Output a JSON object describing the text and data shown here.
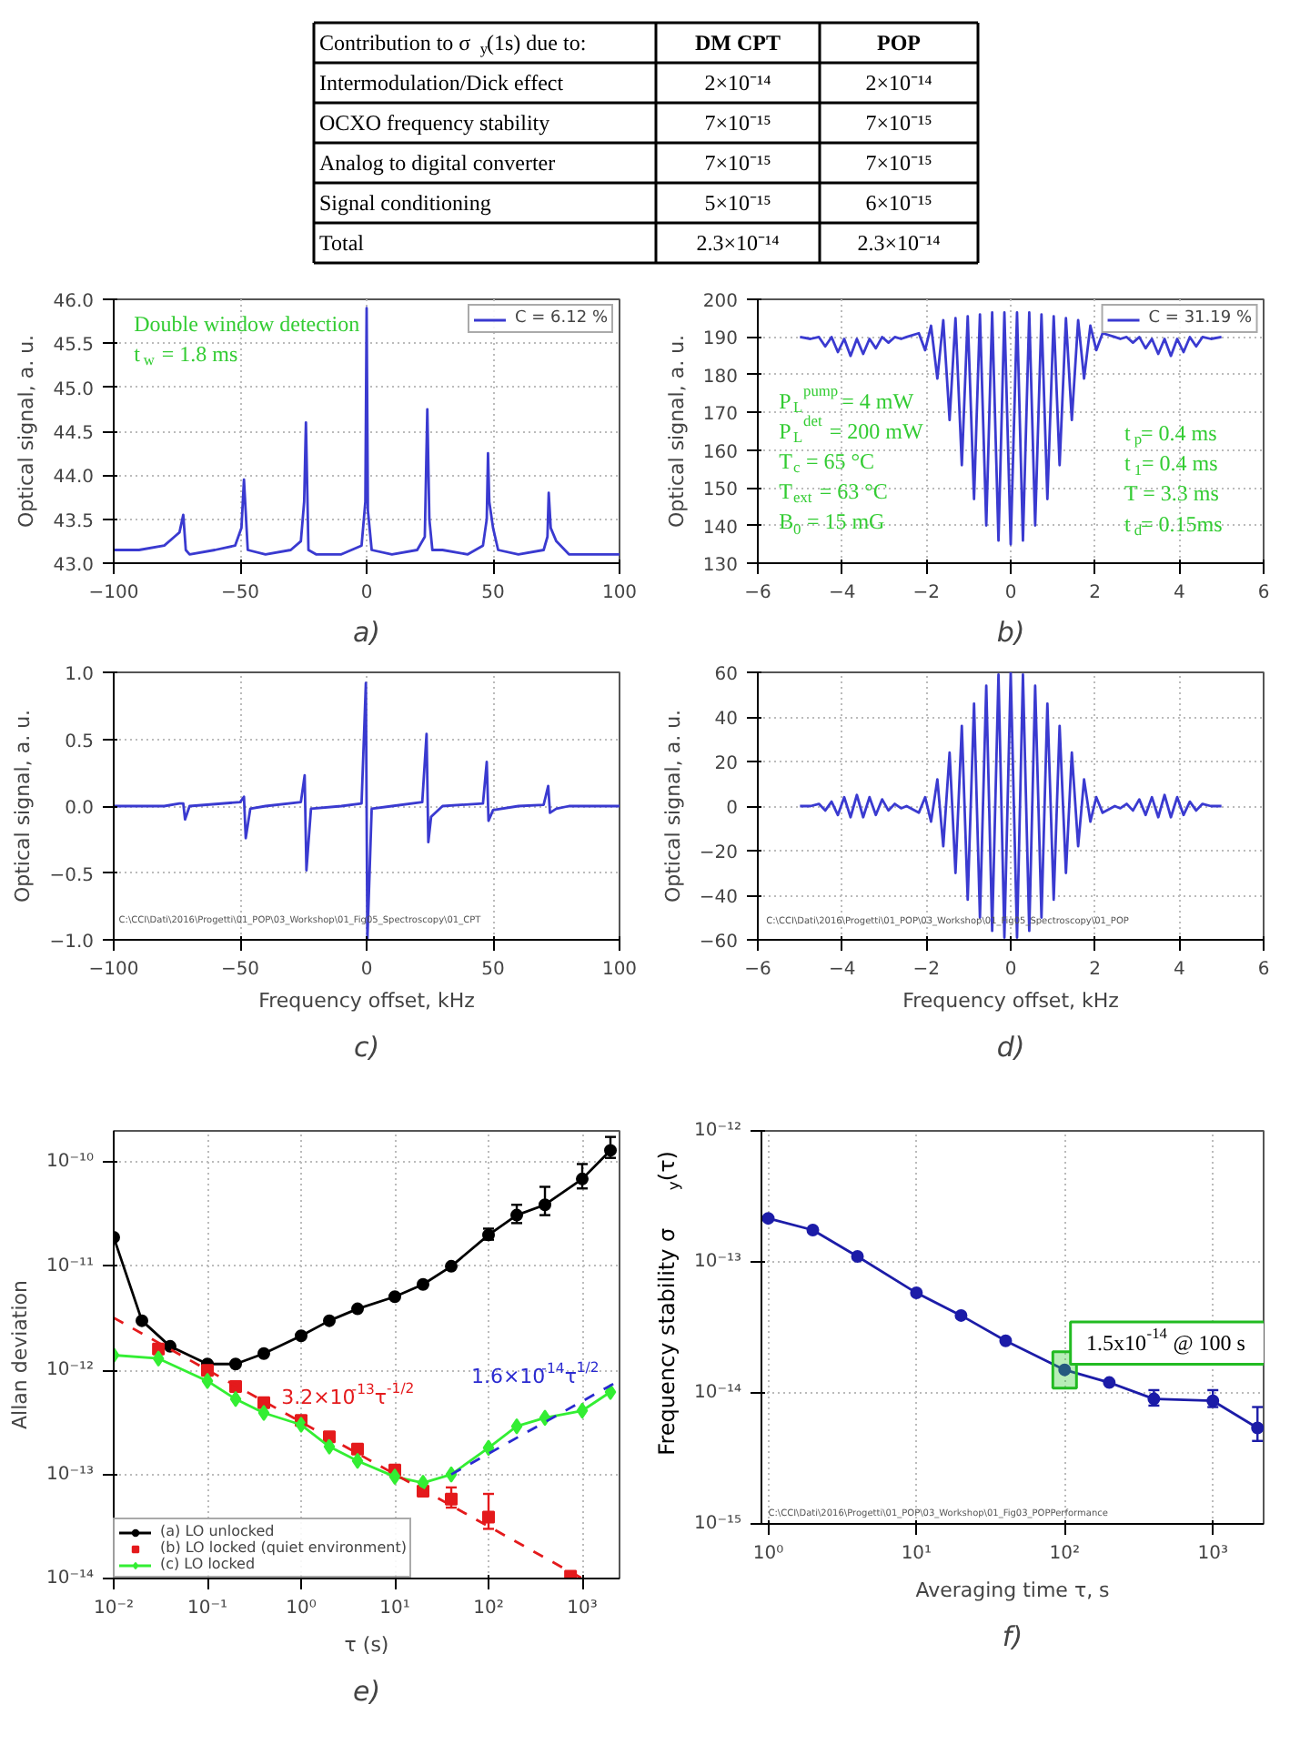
{
  "chart_data": [
    {
      "type": "other",
      "title": "Contribution to σ$_{y}$(1s) due to:",
      "categories": [
        "DM CPT",
        "POP"
      ],
      "y_categories": [
        "Intermodulation/Dick effect",
        "OCXO frequency stability",
        "Analog to digital converter",
        "Signal conditioning",
        "Total"
      ],
      "cell_labels": [
        [
          "2×10⁻¹⁴",
          "2×10⁻¹⁴"
        ],
        [
          "7×10⁻¹⁵",
          "7×10⁻¹⁵"
        ],
        [
          "7×10⁻¹⁵",
          "7×10⁻¹⁵"
        ],
        [
          "5×10⁻¹⁵",
          "6×10⁻¹⁵"
        ],
        [
          "2.3×10⁻¹⁴",
          "2.3×10⁻¹⁴"
        ]
      ]
    },
    {
      "type": "line",
      "title": "a)",
      "ylabel": "Optical signal, a. u.",
      "xlim": [
        -100,
        100
      ],
      "ylim": [
        43,
        46
      ],
      "xticks": [
        {
          "value": -100,
          "label": "−100"
        },
        {
          "value": -50,
          "label": "−50"
        },
        0,
        50,
        100
      ],
      "yticks": [
        {
          "value": 43,
          "label": "43.0"
        },
        {
          "value": 43.5,
          "label": "43.5"
        },
        {
          "value": 44,
          "label": "44.0"
        },
        {
          "value": 44.5,
          "label": "44.5"
        },
        {
          "value": 45,
          "label": "45.0"
        },
        {
          "value": 45.5,
          "label": "45.5"
        },
        {
          "value": 46,
          "label": "46.0"
        }
      ],
      "grid": true,
      "legend": "top right",
      "annotations": [
        "Double window detection",
        "t$_{w}$ = 1.8 ms"
      ],
      "series": [
        {
          "name": "C = 6.12 %",
          "color": "#3a3ad0",
          "x": [
            -100,
            -90,
            -80,
            -76,
            -74,
            -72.5,
            -71.5,
            -70,
            -60,
            -52,
            -49.5,
            -48.5,
            -47,
            -40,
            -30,
            -26,
            -24.7,
            -24,
            -23,
            -20,
            -10,
            -2,
            -0.5,
            0,
            0.5,
            2,
            10,
            20,
            23,
            24,
            24.8,
            26,
            30,
            40,
            46,
            47.5,
            48,
            48.5,
            50,
            52,
            60,
            70,
            71.5,
            72,
            72.8,
            75,
            80,
            90,
            100
          ],
          "values": [
            43.15,
            43.15,
            43.2,
            43.3,
            43.35,
            43.55,
            43.15,
            43.1,
            43.15,
            43.2,
            43.4,
            43.95,
            43.15,
            43.1,
            43.15,
            43.25,
            43.7,
            44.6,
            43.15,
            43.1,
            43.1,
            43.2,
            43.7,
            45.9,
            43.6,
            43.15,
            43.1,
            43.15,
            43.3,
            44.75,
            43.5,
            43.15,
            43.15,
            43.1,
            43.2,
            43.5,
            44.25,
            43.7,
            43.4,
            43.15,
            43.1,
            43.15,
            43.3,
            43.8,
            43.4,
            43.25,
            43.1,
            43.1,
            43.1
          ]
        }
      ]
    },
    {
      "type": "line",
      "title": "b)",
      "ylabel": "Optical signal, a. u.",
      "xlim": [
        -6,
        6
      ],
      "ylim": [
        130,
        200
      ],
      "xticks": [
        {
          "value": -6,
          "label": "−6"
        },
        {
          "value": -4,
          "label": "−4"
        },
        {
          "value": -2,
          "label": "−2"
        },
        0,
        2,
        4,
        6
      ],
      "yticks": [
        130,
        140,
        150,
        160,
        170,
        180,
        190,
        200
      ],
      "grid": true,
      "legend": "top right",
      "annotations": [
        "P$_{L}$$^{pump}$ = 4 mW",
        "P$_{L}$$^{det}$ = 200 mW",
        "T$_{c}$ = 65 °C",
        "T$_{ext}$ = 63 °C",
        "B$_{0}$ = 15 mG",
        "t$_{p}$= 0.4 ms",
        "t$_{1}$= 0.4 ms",
        "T = 3.3 ms",
        "t$_{d}$= 0.15ms"
      ],
      "series": [
        {
          "name": "C = 31.19 %",
          "color": "#3a3ad0",
          "x": [
            -5.0,
            -4.75,
            -4.55,
            -4.4,
            -4.25,
            -4.1,
            -3.95,
            -3.8,
            -3.65,
            -3.5,
            -3.35,
            -3.2,
            -3.05,
            -2.9,
            -2.75,
            -2.6,
            -2.47,
            -2.18,
            -2.03,
            -1.89,
            -1.74,
            -1.6,
            -1.45,
            -1.31,
            -1.16,
            -1.02,
            -0.87,
            -0.73,
            -0.58,
            -0.44,
            -0.29,
            -0.15,
            0,
            0.15,
            0.29,
            0.44,
            0.58,
            0.73,
            0.87,
            1.02,
            1.16,
            1.31,
            1.45,
            1.6,
            1.74,
            1.89,
            2.03,
            2.18,
            2.47,
            2.6,
            2.75,
            2.9,
            3.05,
            3.2,
            3.35,
            3.5,
            3.65,
            3.8,
            3.95,
            4.1,
            4.25,
            4.4,
            4.55,
            4.75,
            5.0
          ],
          "values": [
            190,
            189.5,
            190,
            187.5,
            190,
            186,
            189.5,
            185,
            189.5,
            185.5,
            189.5,
            187,
            190,
            188.5,
            190,
            189.5,
            190,
            191,
            186.5,
            193,
            179,
            194.5,
            168,
            195,
            156,
            195.5,
            147,
            196,
            140,
            196.5,
            136,
            196.5,
            135,
            196.5,
            136,
            196.5,
            140,
            196,
            147,
            195.5,
            156,
            195,
            168,
            194.5,
            179,
            193,
            186.5,
            191,
            190,
            189.5,
            190,
            188.5,
            190,
            187,
            189.5,
            185.5,
            189.5,
            185,
            189.5,
            186,
            190,
            187.5,
            190,
            189.5,
            190
          ]
        }
      ]
    },
    {
      "type": "line",
      "title": "c)",
      "xlabel": "Frequency offset, kHz",
      "ylabel": "Optical signal, a. u.",
      "xlim": [
        -100,
        100
      ],
      "ylim": [
        -1,
        1
      ],
      "xticks": [
        {
          "value": -100,
          "label": "−100"
        },
        {
          "value": -50,
          "label": "−50"
        },
        0,
        50,
        100
      ],
      "yticks": [
        {
          "value": -1,
          "label": "−1.0"
        },
        {
          "value": -0.5,
          "label": "−0.5"
        },
        {
          "value": 0,
          "label": "0.0"
        },
        {
          "value": 0.5,
          "label": "0.5"
        },
        {
          "value": 1,
          "label": "1.0"
        }
      ],
      "grid": true,
      "annotations": [
        "C:\\CCI\\Dati\\2016\\Progetti\\01_POP\\03_Workshop\\01_Fig05_Spectroscopy\\01_CPT"
      ],
      "series": [
        {
          "color": "#3a3ad0",
          "x": [
            -100,
            -80,
            -74,
            -72.5,
            -71.8,
            -70,
            -50,
            -48.5,
            -47.8,
            -46,
            -40,
            -26,
            -24.5,
            -23.8,
            -22,
            -10,
            -2,
            -0.3,
            0.3,
            2,
            10,
            22,
            23.7,
            24.4,
            25.5,
            30,
            46,
            47.5,
            48.2,
            50,
            60,
            70,
            71.8,
            72.5,
            75,
            80,
            100
          ],
          "values": [
            0,
            0,
            0.02,
            0.02,
            -0.1,
            0,
            0.03,
            0.07,
            -0.24,
            -0.02,
            0,
            0.03,
            0.23,
            -0.48,
            -0.02,
            0,
            0.02,
            0.92,
            -1.0,
            -0.02,
            0,
            0.03,
            0.54,
            -0.27,
            -0.08,
            0,
            0.02,
            0.33,
            -0.11,
            -0.03,
            0,
            0.01,
            0.15,
            -0.05,
            -0.02,
            0,
            0
          ]
        }
      ]
    },
    {
      "type": "line",
      "title": "d)",
      "xlabel": "Frequency offset, kHz",
      "ylabel": "Optical signal, a. u.",
      "xlim": [
        -6,
        6
      ],
      "ylim": [
        -60,
        60
      ],
      "xticks": [
        {
          "value": -6,
          "label": "−6"
        },
        {
          "value": -4,
          "label": "−4"
        },
        {
          "value": -2,
          "label": "−2"
        },
        0,
        2,
        4,
        6
      ],
      "yticks": [
        {
          "value": -60,
          "label": "−60"
        },
        {
          "value": -40,
          "label": "−40"
        },
        {
          "value": -20,
          "label": "−20"
        },
        0,
        20,
        40,
        60
      ],
      "grid": true,
      "annotations": [
        "C:\\CCI\\Dati\\2016\\Progetti\\01_POP\\03_Workshop\\01_Fig05_Spectroscopy\\01_POP"
      ],
      "series": [
        {
          "color": "#3a3ad0",
          "x": [
            -5.0,
            -4.75,
            -4.55,
            -4.4,
            -4.25,
            -4.1,
            -3.95,
            -3.8,
            -3.65,
            -3.5,
            -3.35,
            -3.2,
            -3.05,
            -2.9,
            -2.75,
            -2.6,
            -2.47,
            -2.18,
            -2.03,
            -1.89,
            -1.74,
            -1.6,
            -1.45,
            -1.31,
            -1.16,
            -1.02,
            -0.87,
            -0.73,
            -0.58,
            -0.44,
            -0.29,
            -0.15,
            0,
            0.15,
            0.29,
            0.44,
            0.58,
            0.73,
            0.87,
            1.02,
            1.16,
            1.31,
            1.45,
            1.6,
            1.74,
            1.89,
            2.03,
            2.18,
            2.47,
            2.6,
            2.75,
            2.9,
            3.05,
            3.2,
            3.35,
            3.5,
            3.65,
            3.8,
            3.95,
            4.1,
            4.25,
            4.4,
            4.55,
            4.75,
            5.0
          ],
          "values": [
            0,
            0,
            1,
            -2,
            2,
            -4,
            4,
            -5,
            5,
            -5,
            4,
            -4,
            3,
            -2,
            1,
            -1,
            0,
            -3,
            4,
            -7,
            12,
            -18,
            24,
            -30,
            36,
            -42,
            46,
            -50,
            54,
            -56,
            59,
            -59,
            60,
            -59,
            59,
            -56,
            54,
            -50,
            46,
            -42,
            36,
            -30,
            24,
            -18,
            12,
            -7,
            4,
            -3,
            0,
            -1,
            1,
            -2,
            3,
            -4,
            4,
            -5,
            5,
            -5,
            4,
            -4,
            2,
            -2,
            1,
            0,
            0
          ]
        }
      ]
    },
    {
      "type": "line",
      "title": "e)",
      "xlabel": "τ (s)",
      "ylabel": "Allan deviation",
      "log": "xy",
      "xlim": [
        0.01,
        2500
      ],
      "ylim": [
        1e-14,
        2e-10
      ],
      "xticks": [
        {
          "value": 0.01,
          "label": "10⁻²"
        },
        {
          "value": 0.1,
          "label": "10⁻¹"
        },
        {
          "value": 1,
          "label": "10⁰"
        },
        {
          "value": 10,
          "label": "10¹"
        },
        {
          "value": 100,
          "label": "10²"
        },
        {
          "value": 1000,
          "label": "10³"
        }
      ],
      "yticks": [
        {
          "value": 1e-14,
          "label": "10⁻¹⁴"
        },
        {
          "value": 1e-13,
          "label": "10⁻¹³"
        },
        {
          "value": 1e-12,
          "label": "10⁻¹²"
        },
        {
          "value": 1e-11,
          "label": "10⁻¹¹"
        },
        {
          "value": 1e-10,
          "label": "10⁻¹⁰"
        }
      ],
      "grid": true,
      "legend": "bottom left",
      "series": [
        {
          "name": "(a) LO unlocked",
          "color": "#000000",
          "type": "line",
          "marker": "circle",
          "x": [
            0.01,
            0.02,
            0.04,
            0.1,
            0.2,
            0.4,
            1,
            2,
            4,
            10,
            20,
            40,
            100,
            200,
            400,
            1000,
            2000
          ],
          "values": [
            1.9e-11,
            3e-12,
            1.7e-12,
            1.15e-12,
            1.15e-12,
            1.45e-12,
            2.15e-12,
            3e-12,
            3.9e-12,
            5.1e-12,
            6.7e-12,
            1e-11,
            2e-11,
            3.1e-11,
            3.9e-11,
            6.9e-11,
            1.3e-10
          ],
          "errors": [
            null,
            null,
            null,
            null,
            null,
            null,
            null,
            null,
            null,
            null,
            null,
            null,
            [
              1.8e-11,
              2.3e-11
            ],
            [
              2.6e-11,
              3.9e-11
            ],
            [
              3.1e-11,
              5.8e-11
            ],
            [
              5.6e-11,
              9.6e-11
            ],
            [
              1.1e-10,
              1.75e-10
            ]
          ]
        },
        {
          "name": "(b) LO locked (quiet environment)",
          "color": "#e41a1c",
          "type": "scatter",
          "marker": "square",
          "x": [
            0.03,
            0.1,
            0.2,
            0.4,
            1,
            2,
            4,
            10,
            20,
            40,
            100,
            750
          ],
          "values": [
            1.6e-12,
            1e-12,
            7e-13,
            4.9e-13,
            3.3e-13,
            2.3e-13,
            1.75e-13,
            1.1e-13,
            6.9e-14,
            5.8e-14,
            3.9e-14,
            1.05e-14
          ],
          "errors": [
            null,
            null,
            null,
            null,
            null,
            null,
            null,
            null,
            null,
            [
              4.8e-14,
              7.5e-14
            ],
            [
              3e-14,
              6.5e-14
            ],
            null
          ]
        },
        {
          "name": "(c) LO locked",
          "color": "#33ee33",
          "type": "line",
          "marker": "diamond",
          "x": [
            0.01,
            0.03,
            0.1,
            0.2,
            0.4,
            1,
            2,
            4,
            10,
            20,
            40,
            100,
            200,
            400,
            1000,
            2000
          ],
          "values": [
            1.4e-12,
            1.3e-12,
            7.9e-13,
            5.3e-13,
            3.9e-13,
            3e-13,
            1.85e-13,
            1.35e-13,
            9.5e-14,
            8.3e-14,
            1e-13,
            1.8e-13,
            2.9e-13,
            3.5e-13,
            4.1e-13,
            6.2e-13
          ]
        },
        {
          "name": "3.2×10$^{-13}$τ$^{-1/2}$",
          "color": "#e41a1c",
          "type": "line",
          "line_style": "dashed",
          "x": [
            0.01,
            1000
          ],
          "values": [
            3.2e-12,
            1e-14
          ]
        },
        {
          "name": "1.6×10$^{-14}$τ$^{1/2}$",
          "color": "#2a2ad0",
          "type": "line",
          "line_style": "dashed",
          "x": [
            40,
            2500
          ],
          "values": [
            1e-13,
            8e-13
          ]
        }
      ]
    },
    {
      "type": "line",
      "title": "f)",
      "xlabel": "Averaging time τ, s",
      "ylabel": "Frequency stability σ$_{y}$(τ)",
      "log": "xy",
      "xlim": [
        0.9,
        2200
      ],
      "ylim": [
        1e-15,
        1e-12
      ],
      "xticks": [
        {
          "value": 1,
          "label": "10⁰"
        },
        {
          "value": 10,
          "label": "10¹"
        },
        {
          "value": 100,
          "label": "10²"
        },
        {
          "value": 1000,
          "label": "10³"
        }
      ],
      "yticks": [
        {
          "value": 1e-15,
          "label": "10⁻¹⁵"
        },
        {
          "value": 1e-14,
          "label": "10⁻¹⁴"
        },
        {
          "value": 1e-13,
          "label": "10⁻¹³"
        },
        {
          "value": 1e-12,
          "label": "10⁻¹²"
        }
      ],
      "grid": true,
      "marker": "circle",
      "annotations": [
        {
          "text": "1.5x10$^{-14}$ @ 100 s",
          "x": 100,
          "y": 1.5e-14
        },
        "C:\\CCI\\Dati\\2016\\Progetti\\01_POP\\03_Workshop\\01_Fig03_POPPerformance"
      ],
      "series": [
        {
          "color": "#1c1ca8",
          "x": [
            1,
            2,
            4,
            10,
            20,
            40,
            100,
            200,
            400,
            1000,
            2000
          ],
          "values": [
            2.15e-13,
            1.75e-13,
            1.1e-13,
            5.8e-14,
            3.9e-14,
            2.5e-14,
            1.5e-14,
            1.2e-14,
            9e-15,
            8.7e-15,
            5.4e-15
          ],
          "errors": [
            null,
            null,
            null,
            null,
            null,
            null,
            null,
            null,
            [
              8e-15,
              1.05e-14
            ],
            [
              7.8e-15,
              1.05e-14
            ],
            [
              4.3e-15,
              7.8e-15
            ]
          ]
        }
      ]
    }
  ]
}
